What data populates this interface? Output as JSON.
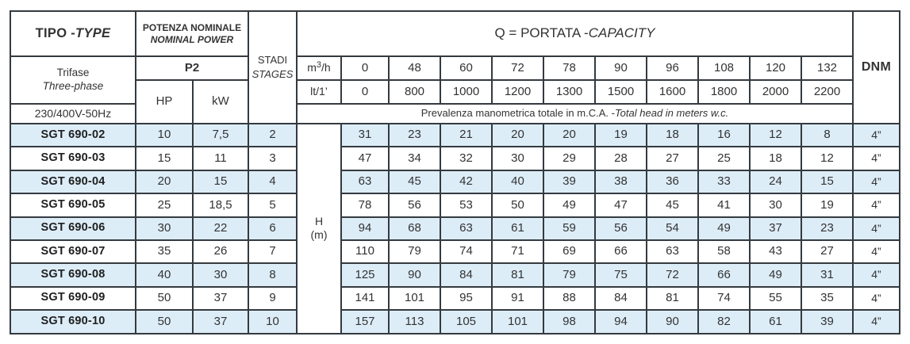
{
  "table": {
    "tipo_prefix": "TIPO - ",
    "tipo_italic": "TYPE",
    "potenza_line1": "POTENZA NOMINALE",
    "potenza_line2": "NOMINAL POWER",
    "stadi_line1": "STADI",
    "stadi_line2": "STAGES",
    "phase_line1": "Trifase",
    "phase_line2": "Three-phase",
    "voltage": "230/400V-50Hz",
    "p2_label": "P2",
    "hp_label": "HP",
    "kw_label": "kW",
    "q_prefix": "Q = PORTATA - ",
    "q_italic": "CAPACITY",
    "flow_m3h_base": "m",
    "flow_m3h_sup": "3",
    "flow_m3h_rest": "/h",
    "flow_lt1_label": "lt/1’",
    "prevalenza_prefix": "Prevalenza manometrica totale in m.C.A. - ",
    "prevalenza_italic": "Total head in meters w.c.",
    "dnm_label": "DNM",
    "h_label": "H",
    "h_unit": "(m)",
    "capacity_m3h": [
      "0",
      "48",
      "60",
      "72",
      "78",
      "90",
      "96",
      "108",
      "120",
      "132"
    ],
    "capacity_lt1": [
      "0",
      "800",
      "1000",
      "1200",
      "1300",
      "1500",
      "1600",
      "1800",
      "2000",
      "2200"
    ]
  },
  "rows": [
    {
      "model": "SGT 690-02",
      "hp": "10",
      "kw": "7,5",
      "stages": "2",
      "heads": [
        "31",
        "23",
        "21",
        "20",
        "20",
        "19",
        "18",
        "16",
        "12",
        "8"
      ],
      "dnm": "4”"
    },
    {
      "model": "SGT 690-03",
      "hp": "15",
      "kw": "11",
      "stages": "3",
      "heads": [
        "47",
        "34",
        "32",
        "30",
        "29",
        "28",
        "27",
        "25",
        "18",
        "12"
      ],
      "dnm": "4”"
    },
    {
      "model": "SGT 690-04",
      "hp": "20",
      "kw": "15",
      "stages": "4",
      "heads": [
        "63",
        "45",
        "42",
        "40",
        "39",
        "38",
        "36",
        "33",
        "24",
        "15"
      ],
      "dnm": "4”"
    },
    {
      "model": "SGT 690-05",
      "hp": "25",
      "kw": "18,5",
      "stages": "5",
      "heads": [
        "78",
        "56",
        "53",
        "50",
        "49",
        "47",
        "45",
        "41",
        "30",
        "19"
      ],
      "dnm": "4”"
    },
    {
      "model": "SGT 690-06",
      "hp": "30",
      "kw": "22",
      "stages": "6",
      "heads": [
        "94",
        "68",
        "63",
        "61",
        "59",
        "56",
        "54",
        "49",
        "37",
        "23"
      ],
      "dnm": "4”"
    },
    {
      "model": "SGT 690-07",
      "hp": "35",
      "kw": "26",
      "stages": "7",
      "heads": [
        "110",
        "79",
        "74",
        "71",
        "69",
        "66",
        "63",
        "58",
        "43",
        "27"
      ],
      "dnm": "4”"
    },
    {
      "model": "SGT 690-08",
      "hp": "40",
      "kw": "30",
      "stages": "8",
      "heads": [
        "125",
        "90",
        "84",
        "81",
        "79",
        "75",
        "72",
        "66",
        "49",
        "31"
      ],
      "dnm": "4”"
    },
    {
      "model": "SGT 690-09",
      "hp": "50",
      "kw": "37",
      "stages": "9",
      "heads": [
        "141",
        "101",
        "95",
        "91",
        "88",
        "84",
        "81",
        "74",
        "55",
        "35"
      ],
      "dnm": "4”"
    },
    {
      "model": "SGT 690-10",
      "hp": "50",
      "kw": "37",
      "stages": "10",
      "heads": [
        "157",
        "113",
        "105",
        "101",
        "98",
        "94",
        "90",
        "82",
        "61",
        "39"
      ],
      "dnm": "4”"
    }
  ],
  "colors": {
    "row_highlight": "#ddedf8",
    "border": "#343a40",
    "text": "#333333"
  }
}
